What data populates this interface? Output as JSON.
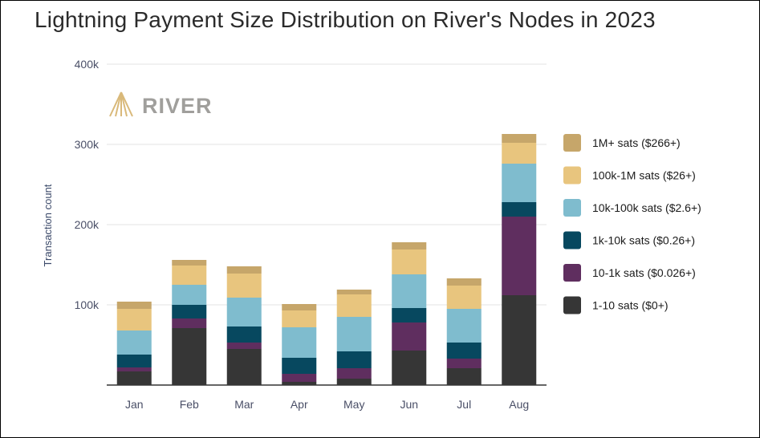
{
  "title": "Lightning Payment Size Distribution on River's Nodes in 2023",
  "logo": {
    "text": "RIVER",
    "icon": "river-mountain-logo-icon"
  },
  "colors": {
    "1M+ sats ($266+)": "#c6a66a",
    "100k-1M sats ($26+)": "#e8c57e",
    "10k-100k sats ($2.6+)": "#7fbcce",
    "1k-10k sats ($0.26+)": "#07485f",
    "10-1k sats ($0.026+)": "#5f2e5f",
    "1-10 sats ($0+)": "#363636"
  },
  "chart_data": {
    "type": "bar",
    "stacked": true,
    "title": "Lightning Payment Size Distribution on River's Nodes in 2023",
    "xlabel": "",
    "ylabel": "Transaction count",
    "ylim": [
      0,
      400000
    ],
    "yticks": [
      100000,
      200000,
      300000,
      400000
    ],
    "ytick_labels": [
      "100k",
      "200k",
      "300k",
      "400k"
    ],
    "grid": true,
    "legend_position": "right",
    "categories": [
      "Jan",
      "Feb",
      "Mar",
      "Apr",
      "May",
      "Jun",
      "Jul",
      "Aug"
    ],
    "series": [
      {
        "name": "1-10 sats ($0+)",
        "values": [
          17000,
          71000,
          45000,
          4000,
          8000,
          43000,
          21000,
          112000
        ]
      },
      {
        "name": "10-1k sats ($0.026+)",
        "values": [
          5000,
          12000,
          8000,
          10000,
          13000,
          35000,
          12000,
          98000
        ]
      },
      {
        "name": "1k-10k sats ($0.26+)",
        "values": [
          16000,
          17000,
          20000,
          20000,
          21000,
          18000,
          20000,
          18000
        ]
      },
      {
        "name": "10k-100k sats ($2.6+)",
        "values": [
          30000,
          25000,
          36000,
          38000,
          43000,
          42000,
          42000,
          48000
        ]
      },
      {
        "name": "100k-1M sats ($26+)",
        "values": [
          27000,
          24000,
          30000,
          21000,
          28000,
          31000,
          29000,
          26000
        ]
      },
      {
        "name": "1M+ sats ($266+)",
        "values": [
          9000,
          7000,
          9000,
          8000,
          6000,
          9000,
          9000,
          11000
        ]
      }
    ]
  }
}
